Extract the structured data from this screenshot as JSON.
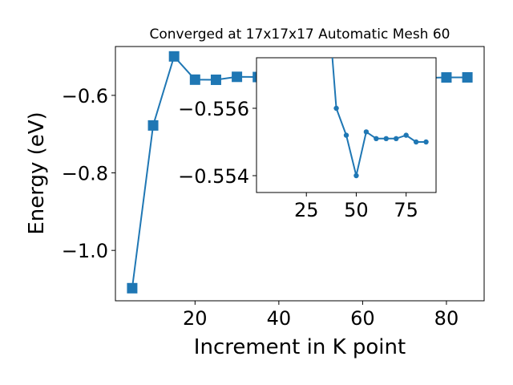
{
  "chart_data": [
    {
      "type": "line",
      "title": "Converged at 17x17x17 Automatic Mesh 60",
      "xlabel": "Increment in K point",
      "ylabel": "Energy (eV)",
      "xlim": [
        1.0,
        89.0
      ],
      "ylim": [
        -1.13,
        -0.474
      ],
      "xticks": [
        20,
        40,
        60,
        80
      ],
      "xtick_labels": [
        "20",
        "40",
        "60",
        "80"
      ],
      "yticks": [
        -1.0,
        -0.8,
        -0.6
      ],
      "ytick_labels": [
        "−1.0",
        "−0.8",
        "−0.6"
      ],
      "grid": false,
      "marker": "square",
      "color": "#1f77b4",
      "series": [
        {
          "x": [
            5,
            10,
            15,
            20,
            25,
            30,
            35,
            40,
            45,
            50,
            55,
            60,
            65,
            70,
            75,
            80,
            85
          ],
          "y": [
            -1.0975,
            -0.6776,
            -0.4995,
            -0.5595,
            -0.5598,
            -0.5522,
            -0.5527,
            -0.5576,
            -0.5549,
            -0.5531,
            -0.5558,
            -0.5553,
            -0.5553,
            -0.5553,
            -0.5549,
            -0.5538,
            -0.5536
          ]
        }
      ]
    },
    {
      "type": "line",
      "title": "",
      "xlabel": "",
      "ylabel": "",
      "xlim": [
        0,
        90
      ],
      "ylim": [
        -0.5535,
        -0.5575
      ],
      "xticks": [
        25,
        50,
        75
      ],
      "xtick_labels": [
        "25",
        "50",
        "75"
      ],
      "yticks": [
        -0.556,
        -0.554
      ],
      "ytick_labels": [
        "−0.556",
        "−0.554"
      ],
      "grid": false,
      "marker": "circle",
      "color": "#1f77b4",
      "series": [
        {
          "x": [
            35,
            40,
            45,
            50,
            55,
            60,
            65,
            70,
            75,
            80,
            85
          ],
          "y": [
            -0.5598,
            -0.556,
            -0.5552,
            -0.554,
            -0.5553,
            -0.5551,
            -0.5551,
            -0.5551,
            -0.5552,
            -0.555,
            -0.555
          ]
        }
      ]
    }
  ]
}
